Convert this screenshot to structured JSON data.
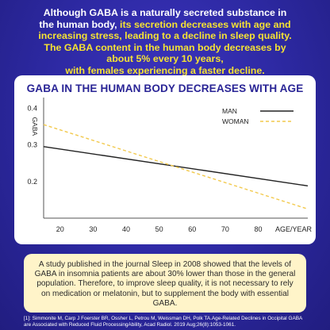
{
  "headline": {
    "part1": "Although GABA is a naturally secreted substance in the human body, ",
    "part2": "its secretion decreases with age and increasing stress, leading to a decline in sleep quality. The GABA content in the human body decreases by about 5% every 10 years,",
    "part3": "with females experiencing a faster decline."
  },
  "colors": {
    "background": "#2f2aa0",
    "highlight": "#f5e233",
    "card": "#ffffff",
    "title": "#2a2596",
    "man_line": "#222222",
    "woman_line": "#f2c94c",
    "note_bg": "#fff4c9"
  },
  "chart_data": {
    "type": "line",
    "title": "GABA IN THE HUMAN BODY DECREASES WITH AGE",
    "xlabel": "AGE/YEAR",
    "ylabel": "GABA",
    "xlim": [
      15,
      95
    ],
    "ylim": [
      0.1,
      0.42
    ],
    "x_ticks": [
      "20",
      "30",
      "40",
      "50",
      "60",
      "70",
      "80"
    ],
    "x_tick_values": [
      20,
      30,
      40,
      50,
      60,
      70,
      80
    ],
    "y_ticks": [
      "0.2",
      "0.3",
      "0.4"
    ],
    "y_tick_values": [
      0.2,
      0.3,
      0.4
    ],
    "grid": false,
    "legend_position": "top-right",
    "series": [
      {
        "name": "MAN",
        "style": "solid",
        "color": "#222222",
        "x": [
          15,
          95
        ],
        "y": [
          0.295,
          0.188
        ]
      },
      {
        "name": "WOMAN",
        "style": "dashed",
        "color": "#f2c94c",
        "x": [
          15,
          95
        ],
        "y": [
          0.355,
          0.125
        ]
      }
    ]
  },
  "note": "A study published in the journal Sleep in 2008 showed that the levels of GABA in insomnia patients are about 30% lower than those in the general population. Therefore, to improve sleep quality, it is not necessary to rely on medication or melatonin, but to supplement the body with essential GABA.",
  "references": "[1]: Simmonite M, Carp J   Foerster BR, Ossher L, Petrou M, Weissman DH, Polk TA.Age-Related Declines in Occipital GABA are Associated with Reduced Fluid ProcessingAbility, Acad Radiol. 2019 Aug;26(8):1053-1061."
}
